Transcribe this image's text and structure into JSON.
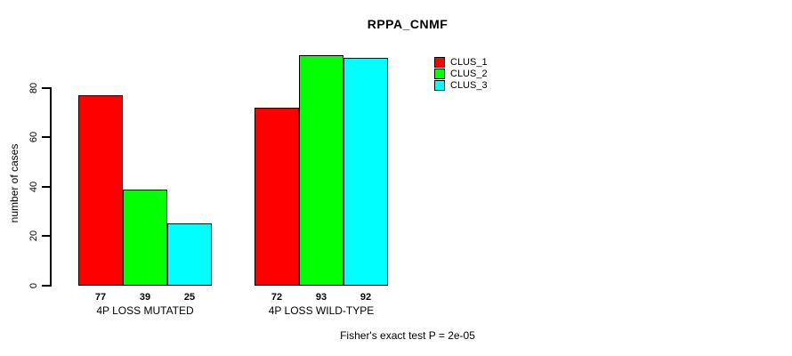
{
  "chart_data": {
    "type": "bar",
    "title": "RPPA_CNMF",
    "ylabel": "number of cases",
    "xlabel": "",
    "ylim": [
      0,
      93
    ],
    "y_ticks": [
      0,
      20,
      40,
      60,
      80
    ],
    "grid": false,
    "legend_position": "top-right",
    "categories": [
      "4P LOSS MUTATED",
      "4P LOSS WILD-TYPE"
    ],
    "series": [
      {
        "name": "CLUS_1",
        "color": "#ff0000",
        "values": [
          77,
          72
        ]
      },
      {
        "name": "CLUS_2",
        "color": "#00ff00",
        "values": [
          39,
          93
        ]
      },
      {
        "name": "CLUS_3",
        "color": "#00ffff",
        "values": [
          25,
          92
        ]
      }
    ],
    "note": "Fisher's exact test P = 2e-05"
  },
  "colors": {
    "background": "#ffffff",
    "axis": "#000000",
    "text": "#000000"
  }
}
